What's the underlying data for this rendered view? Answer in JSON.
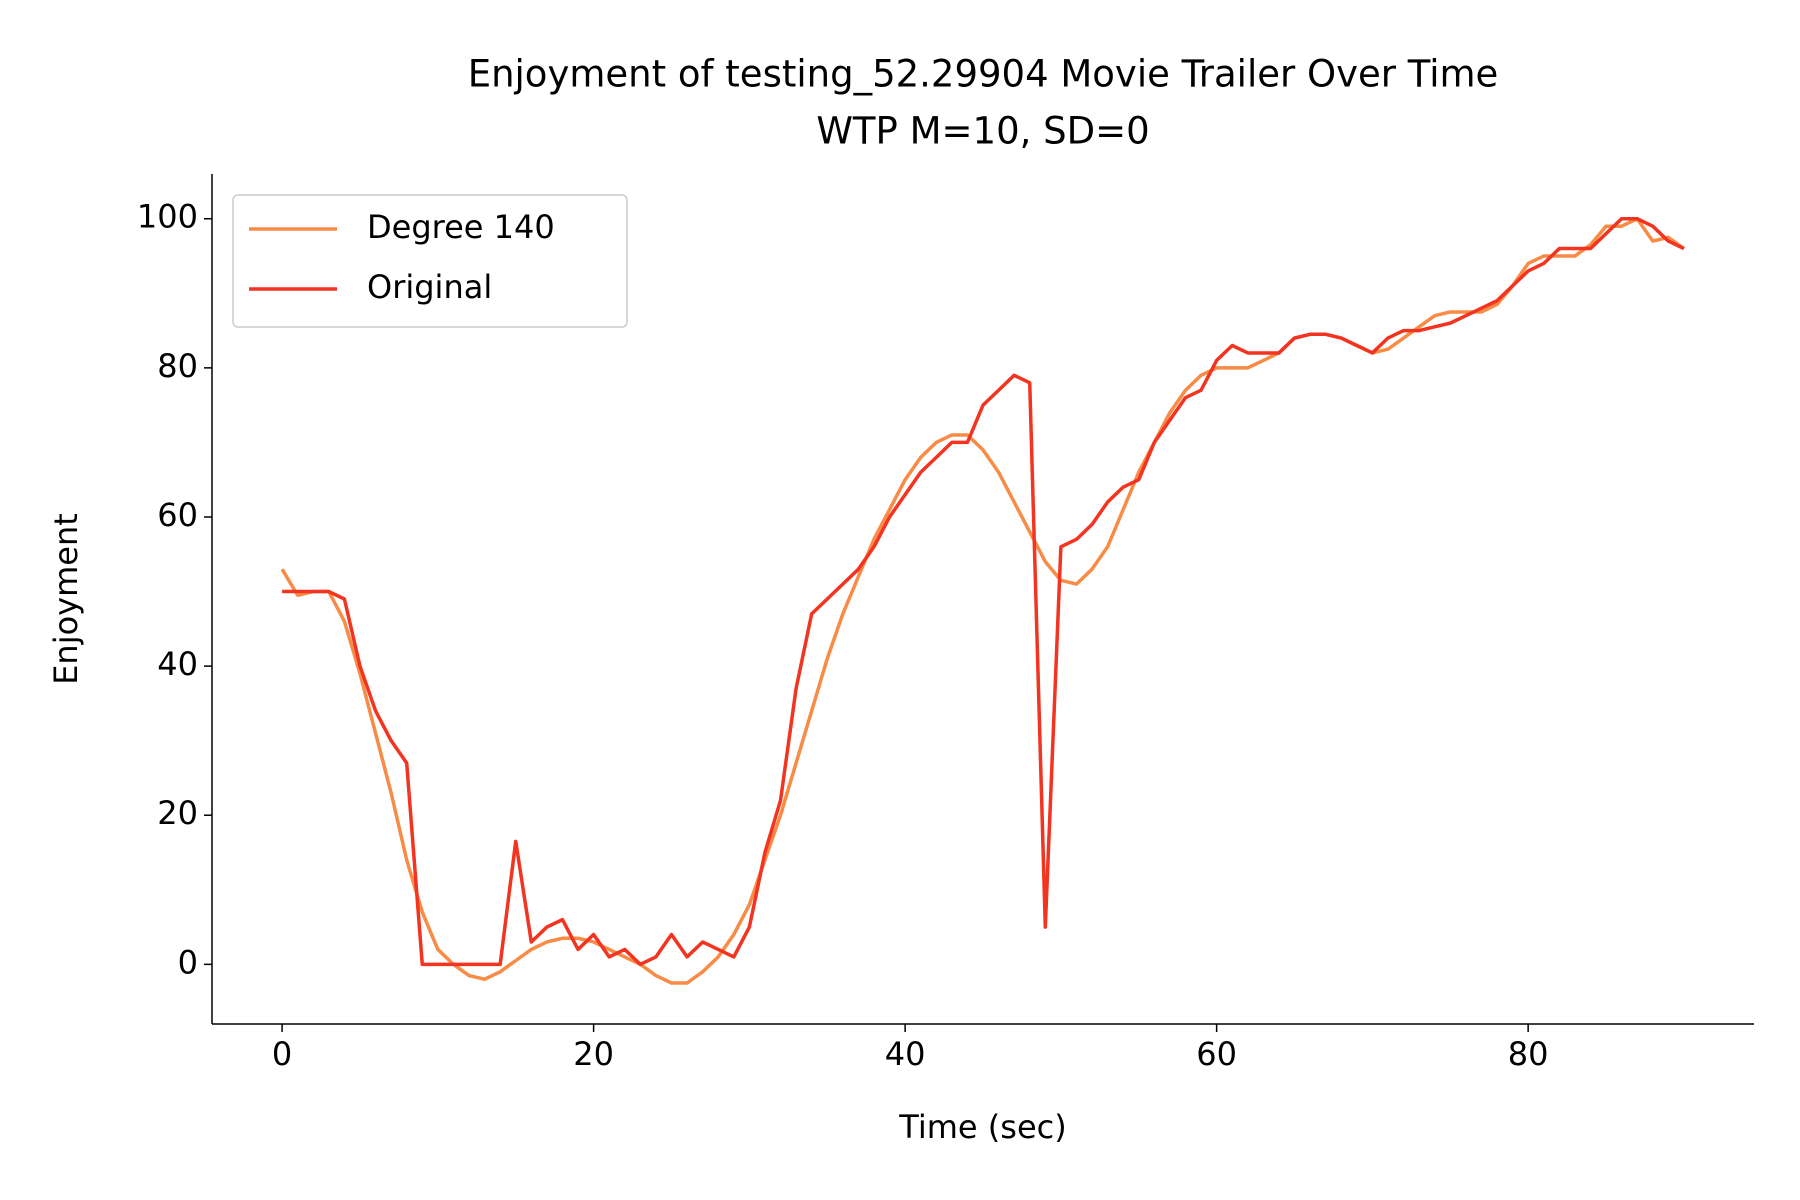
{
  "chart_data": {
    "type": "line",
    "title": "Enjoyment of testing_52.29904 Movie Trailer Over Time",
    "subtitle": "WTP M=10, SD=0",
    "x_label": "Time (sec)",
    "y_label": "Enjoyment",
    "x": [
      0,
      1,
      2,
      3,
      4,
      5,
      6,
      7,
      8,
      9,
      10,
      11,
      12,
      13,
      14,
      15,
      16,
      17,
      18,
      19,
      20,
      21,
      22,
      23,
      24,
      25,
      26,
      27,
      28,
      29,
      30,
      31,
      32,
      33,
      34,
      35,
      36,
      37,
      38,
      39,
      40,
      41,
      42,
      43,
      44,
      45,
      46,
      47,
      48,
      49,
      50,
      51,
      52,
      53,
      54,
      55,
      56,
      57,
      58,
      59,
      60,
      61,
      62,
      63,
      64,
      65,
      66,
      67,
      68,
      69,
      70,
      71,
      72,
      73,
      74,
      75,
      76,
      77,
      78,
      79,
      80,
      81,
      82,
      83,
      84,
      85,
      86,
      87,
      88,
      89,
      90
    ],
    "series": [
      {
        "name": "Degree 140",
        "color": "#f88b46",
        "values": [
          53,
          49.5,
          50,
          50,
          46,
          39,
          31,
          23,
          14,
          7,
          2,
          0,
          -1.5,
          -2,
          -1,
          0.5,
          2,
          3,
          3.5,
          3.5,
          3,
          2,
          1,
          0,
          -1.5,
          -2.5,
          -2.5,
          -1,
          1,
          4,
          8,
          14,
          20,
          27,
          34,
          41,
          47,
          52,
          57,
          61,
          65,
          68,
          70,
          71,
          71,
          69,
          66,
          62,
          58,
          54,
          51.5,
          51,
          53,
          56,
          61,
          66,
          70,
          74,
          77,
          79,
          80,
          80,
          80,
          81,
          82,
          84,
          84.5,
          84.5,
          84,
          83,
          82,
          82.5,
          84,
          85.5,
          87,
          87.5,
          87.5,
          87.5,
          88.5,
          91,
          94,
          95,
          95,
          95,
          96.5,
          99,
          99,
          100,
          97,
          97.5,
          96
        ]
      },
      {
        "name": "Original",
        "color": "#f23420",
        "values": [
          50,
          50,
          50,
          50,
          49,
          40,
          34,
          30,
          27,
          0,
          0,
          0,
          0,
          0,
          0,
          16.5,
          3,
          5,
          6,
          2,
          4,
          1,
          2,
          0,
          1,
          4,
          1,
          3,
          2,
          1,
          5,
          15,
          22,
          37,
          47,
          49,
          51,
          53,
          56,
          60,
          63,
          66,
          68,
          70,
          70,
          75,
          77,
          79,
          78,
          5,
          56,
          57,
          59,
          62,
          64,
          65,
          70,
          73,
          76,
          77,
          81,
          83,
          82,
          82,
          82,
          84,
          84.5,
          84.5,
          84,
          83,
          82,
          84,
          85,
          85,
          85.5,
          86,
          87,
          88,
          89,
          91,
          93,
          94,
          96,
          96,
          96,
          98,
          100,
          100,
          99,
          97,
          96
        ]
      }
    ],
    "xlim": [
      -4.5,
      94.5
    ],
    "ylim": [
      -8,
      106
    ],
    "xticks": [
      0,
      20,
      40,
      60,
      80
    ],
    "yticks": [
      0,
      20,
      40,
      60,
      80,
      100
    ],
    "legend": "upper left"
  }
}
